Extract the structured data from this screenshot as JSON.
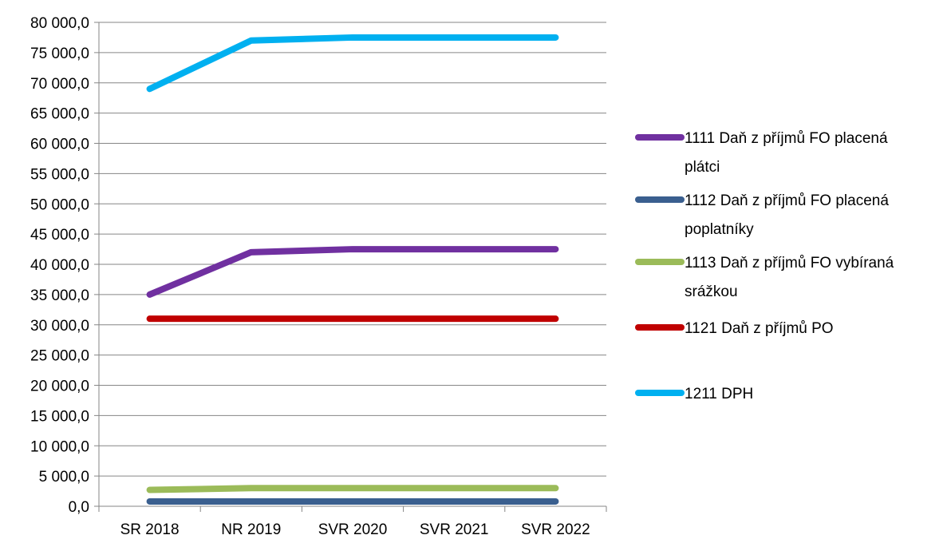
{
  "chart_data": {
    "type": "line",
    "title": "",
    "xlabel": "",
    "ylabel": "",
    "categories": [
      "SR 2018",
      "NR 2019",
      "SVR 2020",
      "SVR 2021",
      "SVR 2022"
    ],
    "ylim": [
      0,
      80000
    ],
    "ytick_step": 5000,
    "yticks": [
      "0,0",
      "5 000,0",
      "10 000,0",
      "15 000,0",
      "20 000,0",
      "25 000,0",
      "30 000,0",
      "35 000,0",
      "40 000,0",
      "45 000,0",
      "50 000,0",
      "55 000,0",
      "60 000,0",
      "65 000,0",
      "70 000,0",
      "75 000,0",
      "80 000,0"
    ],
    "grid": true,
    "legend_position": "right",
    "series": [
      {
        "name": "1111 Daň z příjmů FO placená plátci",
        "name_lines": [
          "1111 Daň z příjmů FO placená",
          "plátci"
        ],
        "color": "#7030a0",
        "values": [
          35000,
          42000,
          42500,
          42500,
          42500
        ]
      },
      {
        "name": "1112 Daň z příjmů FO placená poplatníky",
        "name_lines": [
          "1112 Daň z příjmů FO placená",
          "poplatníky"
        ],
        "color": "#3a5f8f",
        "values": [
          800,
          800,
          800,
          800,
          800
        ]
      },
      {
        "name": "1113 Daň z příjmů FO vybíraná srážkou",
        "name_lines": [
          "1113 Daň z příjmů FO vybíraná",
          "srážkou"
        ],
        "color": "#9bbb59",
        "values": [
          2700,
          3000,
          3000,
          3000,
          3000
        ]
      },
      {
        "name": "1121 Daň z příjmů PO",
        "name_lines": [
          "1121 Daň z příjmů PO"
        ],
        "color": "#c00000",
        "values": [
          31000,
          31000,
          31000,
          31000,
          31000
        ]
      },
      {
        "name": "1211 DPH",
        "name_lines": [
          "1211 DPH"
        ],
        "color": "#00b0f0",
        "values": [
          69000,
          77000,
          77500,
          77500,
          77500
        ]
      }
    ]
  }
}
